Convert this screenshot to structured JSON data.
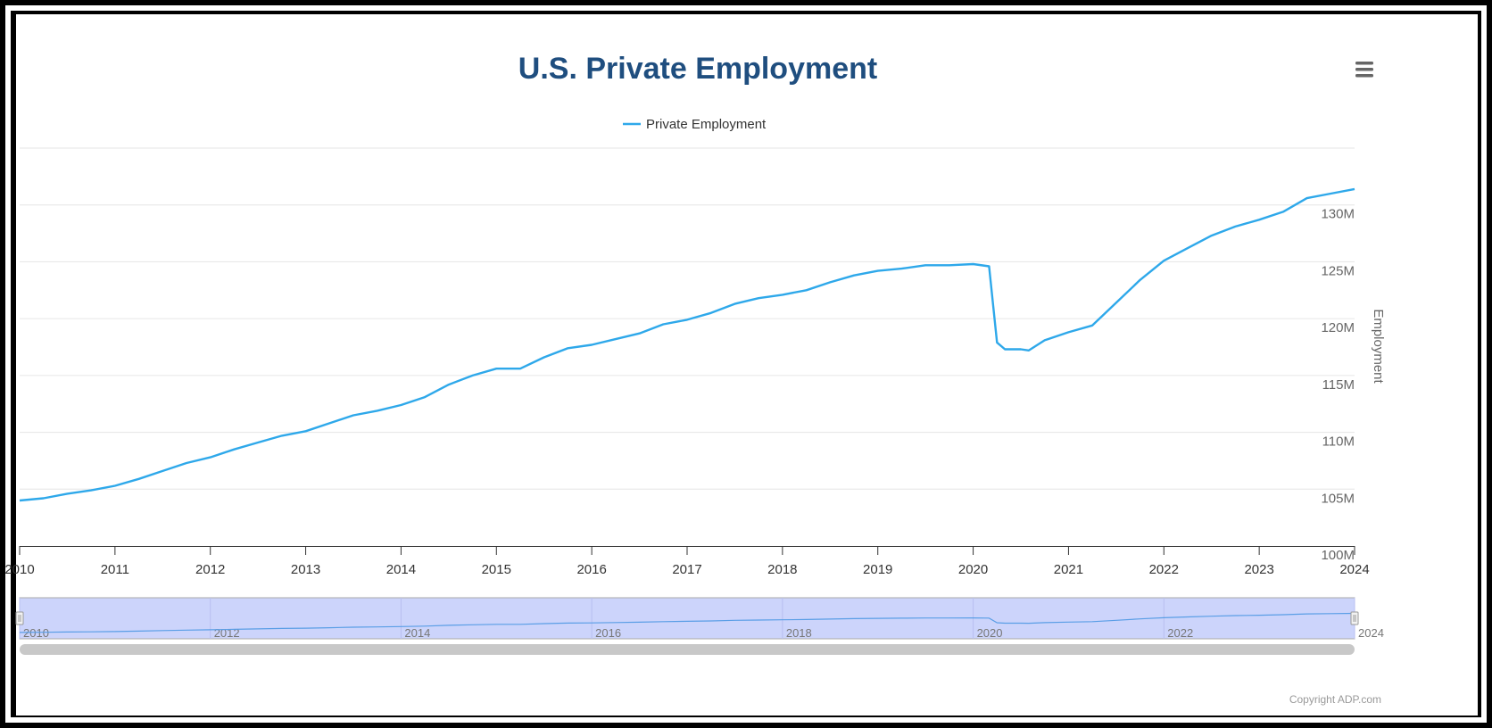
{
  "chart_data": {
    "type": "line",
    "title": "U.S. Private Employment",
    "ylabel": "Employment",
    "xlabel": "",
    "legend": {
      "position": "top-center",
      "entries": [
        "Private Employment"
      ]
    },
    "series": [
      {
        "name": "Private Employment",
        "color": "#2ea8ea",
        "x": [
          "2010-01",
          "2010-04",
          "2010-07",
          "2010-10",
          "2011-01",
          "2011-04",
          "2011-07",
          "2011-10",
          "2012-01",
          "2012-04",
          "2012-07",
          "2012-10",
          "2013-01",
          "2013-04",
          "2013-07",
          "2013-10",
          "2014-01",
          "2014-04",
          "2014-07",
          "2014-10",
          "2015-01",
          "2015-04",
          "2015-07",
          "2015-10",
          "2016-01",
          "2016-04",
          "2016-07",
          "2016-10",
          "2017-01",
          "2017-04",
          "2017-07",
          "2017-10",
          "2018-01",
          "2018-04",
          "2018-07",
          "2018-10",
          "2019-01",
          "2019-04",
          "2019-07",
          "2019-10",
          "2020-01",
          "2020-03",
          "2020-04",
          "2020-05",
          "2020-06",
          "2020-07",
          "2020-08",
          "2020-10",
          "2021-01",
          "2021-04",
          "2021-07",
          "2021-10",
          "2022-01",
          "2022-04",
          "2022-07",
          "2022-10",
          "2023-01",
          "2023-04",
          "2023-07",
          "2023-10",
          "2024-01"
        ],
        "y": [
          104.0,
          104.2,
          104.6,
          104.9,
          105.3,
          105.9,
          106.6,
          107.3,
          107.8,
          108.5,
          109.1,
          109.7,
          110.1,
          110.8,
          111.5,
          111.9,
          112.4,
          113.1,
          114.2,
          115.0,
          115.6,
          115.6,
          116.6,
          117.4,
          117.7,
          118.2,
          118.7,
          119.5,
          119.9,
          120.5,
          121.3,
          121.8,
          122.1,
          122.5,
          123.2,
          123.8,
          124.2,
          124.4,
          124.7,
          124.7,
          124.8,
          124.6,
          117.9,
          117.3,
          117.3,
          117.3,
          117.2,
          118.1,
          118.8,
          119.4,
          121.4,
          123.4,
          125.1,
          126.2,
          127.3,
          128.1,
          128.7,
          129.4,
          130.6,
          131.0,
          131.4
        ]
      }
    ],
    "xticks": [
      "2010",
      "2011",
      "2012",
      "2013",
      "2014",
      "2015",
      "2016",
      "2017",
      "2018",
      "2019",
      "2020",
      "2021",
      "2022",
      "2023",
      "2024"
    ],
    "yticks": [
      "100M",
      "105M",
      "110M",
      "115M",
      "120M",
      "125M",
      "130M"
    ],
    "ylim": [
      100,
      135
    ],
    "xlim": [
      "2010-01",
      "2024-01"
    ],
    "grid": true,
    "navigator": {
      "ticks": [
        "2010",
        "2012",
        "2014",
        "2016",
        "2018",
        "2020",
        "2022",
        "2024"
      ]
    },
    "credit": "Copyright ADP.com"
  },
  "ui": {
    "menu_icon": "hamburger-menu-icon"
  }
}
